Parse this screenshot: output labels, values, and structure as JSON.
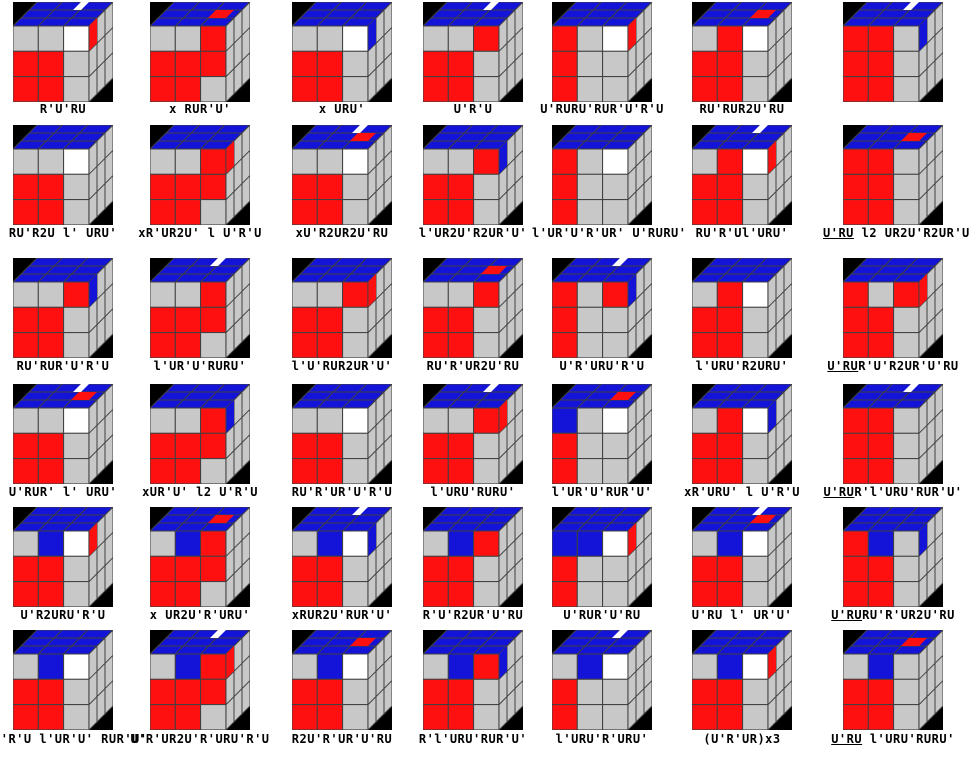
{
  "colors": {
    "top": "#1414d8",
    "front": "#ff1010",
    "grey": "#c8c8c8",
    "white": "#ffffff",
    "dark": "#000000",
    "line": "#404040"
  },
  "cases": [
    {
      "label": "R'U'RU"
    },
    {
      "label": "x RUR'U'"
    },
    {
      "label": "x URU'"
    },
    {
      "label": "U'R'U"
    },
    {
      "label": "U'RURU'RUR'U'R'U"
    },
    {
      "label": "RU'RUR2U'RU"
    },
    {
      "label": ""
    },
    {
      "label": "RU'R2U l' URU'"
    },
    {
      "label": "xR'UR2U' l U'R'U"
    },
    {
      "label": "xU'R2UR2U'RU"
    },
    {
      "label": "l'UR2U'R2UR'U'"
    },
    {
      "label": "l'UR'U'R'UR' U'RURU'"
    },
    {
      "label": "RU'R'Ul'URU'"
    },
    {
      "label": "U'RU l2 UR2U'R2UR'U'",
      "under": "U'RU"
    },
    {
      "label": "RU'RUR'U'R'U"
    },
    {
      "label": "l'UR'U'RURU'"
    },
    {
      "label": "l'U'RUR2UR'U'"
    },
    {
      "label": "RU'R'UR2U'RU"
    },
    {
      "label": "U'R'URU'R'U"
    },
    {
      "label": "l'URU'R2URU'"
    },
    {
      "label": "U'RUR'U'R2UR'U'RU",
      "under": "U'RU"
    },
    {
      "label": "U'RUR' l' URU'"
    },
    {
      "label": "xUR'U' l2 U'R'U"
    },
    {
      "label": "RU'R'UR'U'R'U"
    },
    {
      "label": "l'URU'RURU'"
    },
    {
      "label": "l'UR'U'RUR'U'"
    },
    {
      "label": "xR'URU' l U'R'U"
    },
    {
      "label": "U'RUR'l'URU'RUR'U'",
      "under": "U'RU"
    },
    {
      "label": "U'R2URU'R'U"
    },
    {
      "label": "x UR2U'R'URU'"
    },
    {
      "label": "xRUR2U'RUR'U'"
    },
    {
      "label": "R'U'R2UR'U'RU"
    },
    {
      "label": "U'RUR'U'RU"
    },
    {
      "label": "U'RU l' UR'U'"
    },
    {
      "label": "U'RURU'R'UR2U'RU",
      "under": "U'RU"
    },
    {
      "label": "U'R'U l'UR'U' RUR'U'"
    },
    {
      "label": "U'R'UR2U'R'URU'R'U"
    },
    {
      "label": "R2U'R'UR'U'RU"
    },
    {
      "label": "R'l'URU'RUR'U'"
    },
    {
      "label": "l'URU'R'URU'"
    },
    {
      "label": "(U'R'UR)x3"
    },
    {
      "label": "U'RU l'URU'RURU'",
      "under": "U'RU"
    }
  ]
}
